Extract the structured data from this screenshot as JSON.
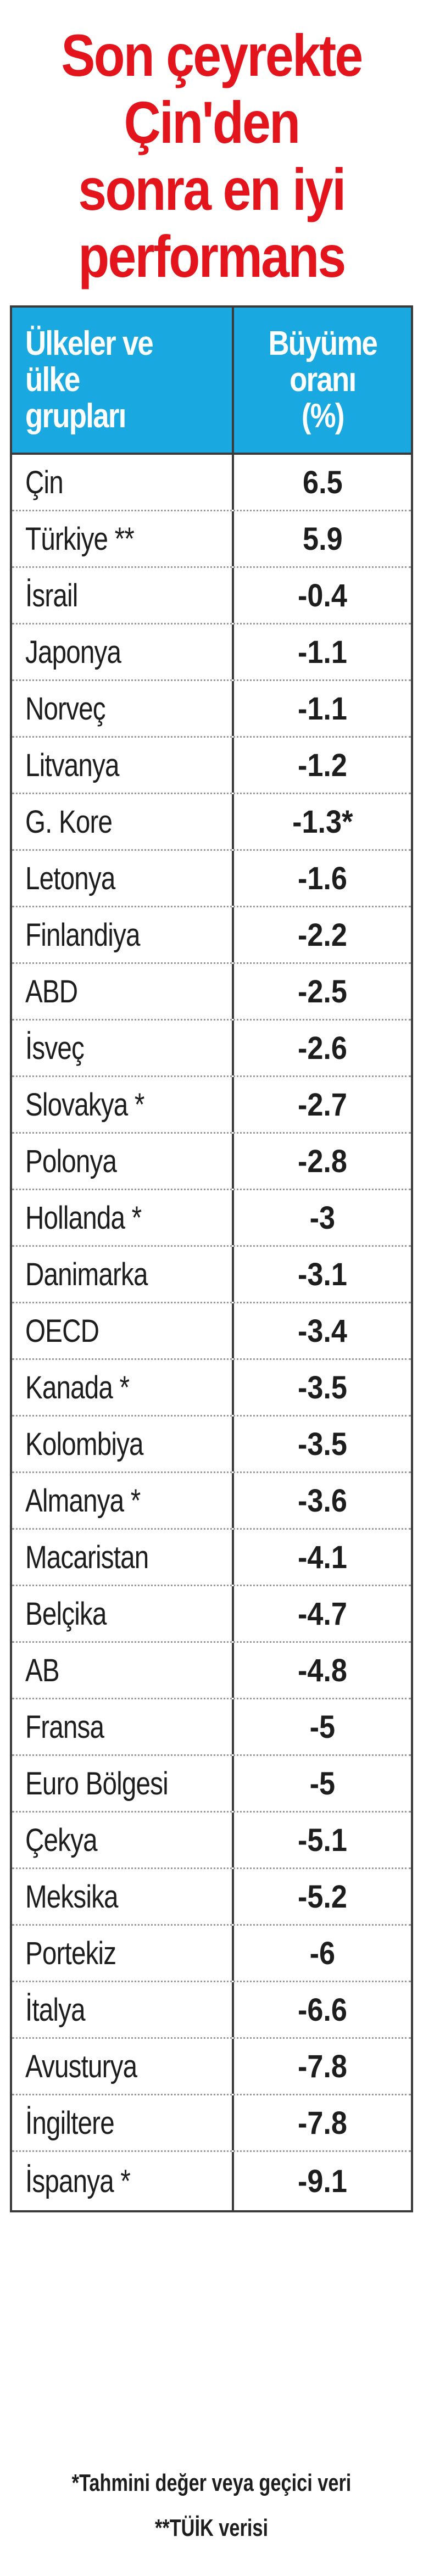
{
  "title_lines": [
    "Son çeyrekte",
    "Çin'den",
    "sonra en iyi",
    "performans"
  ],
  "table": {
    "header": {
      "country_lines": [
        "Ülkeler ve",
        "ülke",
        "grupları"
      ],
      "rate_lines": [
        "Büyüme",
        "oranı",
        "(%)"
      ]
    },
    "rows": [
      {
        "country": "Çin",
        "rate": "6.5"
      },
      {
        "country": "Türkiye **",
        "rate": "5.9"
      },
      {
        "country": "İsrail",
        "rate": "-0.4"
      },
      {
        "country": "Japonya",
        "rate": "-1.1"
      },
      {
        "country": "Norveç",
        "rate": "-1.1"
      },
      {
        "country": "Litvanya",
        "rate": "-1.2"
      },
      {
        "country": "G. Kore",
        "rate": "-1.3*"
      },
      {
        "country": "Letonya",
        "rate": "-1.6"
      },
      {
        "country": "Finlandiya",
        "rate": "-2.2"
      },
      {
        "country": "ABD",
        "rate": "-2.5"
      },
      {
        "country": "İsveç",
        "rate": "-2.6"
      },
      {
        "country": "Slovakya *",
        "rate": "-2.7"
      },
      {
        "country": "Polonya",
        "rate": "-2.8"
      },
      {
        "country": "Hollanda *",
        "rate": "-3"
      },
      {
        "country": "Danimarka",
        "rate": "-3.1"
      },
      {
        "country": "OECD",
        "rate": "-3.4"
      },
      {
        "country": "Kanada *",
        "rate": "-3.5"
      },
      {
        "country": "Kolombiya",
        "rate": "-3.5"
      },
      {
        "country": "Almanya *",
        "rate": "-3.6"
      },
      {
        "country": "Macaristan",
        "rate": "-4.1"
      },
      {
        "country": "Belçika",
        "rate": "-4.7"
      },
      {
        "country": "AB",
        "rate": "-4.8"
      },
      {
        "country": "Fransa",
        "rate": "-5"
      },
      {
        "country": "Euro Bölgesi",
        "rate": "-5"
      },
      {
        "country": "Çekya",
        "rate": "-5.1"
      },
      {
        "country": "Meksika",
        "rate": "-5.2"
      },
      {
        "country": "Portekiz",
        "rate": "-6"
      },
      {
        "country": "İtalya",
        "rate": "-6.6"
      },
      {
        "country": "Avusturya",
        "rate": "-7.8"
      },
      {
        "country": "İngiltere",
        "rate": "-7.8"
      },
      {
        "country": "İspanya *",
        "rate": "-9.1"
      }
    ]
  },
  "footnotes": [
    "*Tahmini değer veya geçici veri",
    "**TÜİK verisi"
  ],
  "colors": {
    "title": "#e3141b",
    "header_bg": "#1aa8e0",
    "header_text": "#ffffff",
    "border": "#3a3a3a"
  }
}
